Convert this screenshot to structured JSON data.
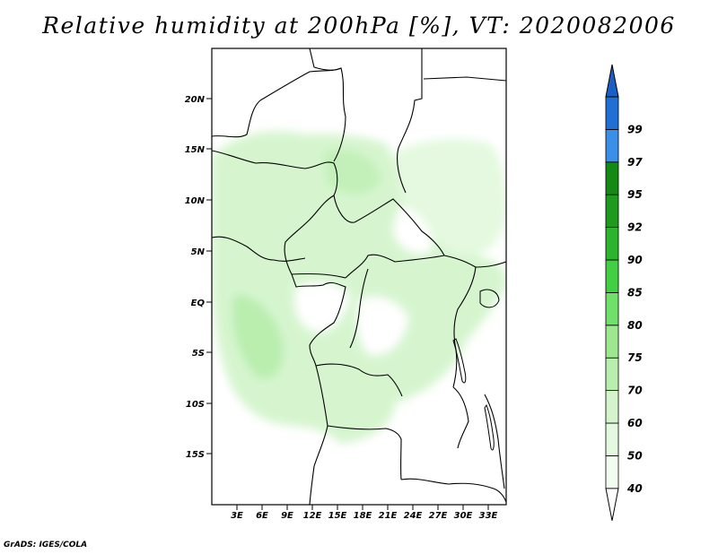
{
  "title": "Relative humidity at 200hPa [%], VT: 2020082006",
  "credit": "GrADS: IGES/COLA",
  "map": {
    "variable": "Relative humidity",
    "level": "200hPa",
    "units": "%",
    "valid_time": "2020082006",
    "lat_ticks": [
      "20N",
      "15N",
      "10N",
      "5N",
      "EQ",
      "5S",
      "10S",
      "15S"
    ],
    "lon_ticks": [
      "3E",
      "6E",
      "9E",
      "12E",
      "15E",
      "18E",
      "21E",
      "24E",
      "27E",
      "30E",
      "33E"
    ]
  },
  "legend": {
    "levels": [
      {
        "label": "40",
        "color": "#f2fdf0"
      },
      {
        "label": "50",
        "color": "#e3fade"
      },
      {
        "label": "60",
        "color": "#d4f5cc"
      },
      {
        "label": "70",
        "color": "#b8efae"
      },
      {
        "label": "75",
        "color": "#9de88f"
      },
      {
        "label": "80",
        "color": "#6fe06a"
      },
      {
        "label": "85",
        "color": "#43cf43"
      },
      {
        "label": "90",
        "color": "#2cb42c"
      },
      {
        "label": "92",
        "color": "#1e9a1e"
      },
      {
        "label": "95",
        "color": "#148a14"
      },
      {
        "label": "97",
        "color": "#3a8fe8"
      },
      {
        "label": "99",
        "color": "#1f6fd6"
      }
    ],
    "top_color": "#1a5fc4",
    "bottom_color": "#ffffff"
  }
}
